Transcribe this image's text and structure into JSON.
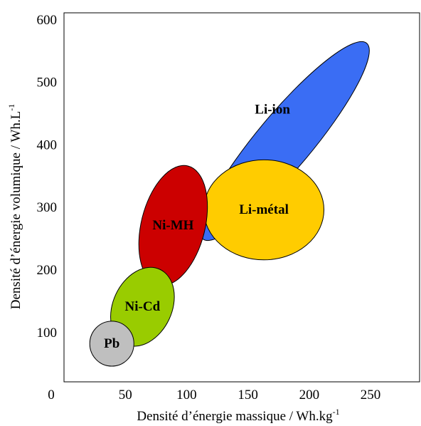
{
  "chart_data": {
    "type": "scatter",
    "title": "",
    "xlabel": "Densité d’énergie massique / Wh.kg",
    "xlabel_sup": "-1",
    "ylabel": "Densité d’énergie volumique / Wh.L",
    "ylabel_sup": "-1",
    "xlim": [
      0,
      290
    ],
    "ylim": [
      20,
      610
    ],
    "x_ticks": [
      0,
      50,
      100,
      150,
      200,
      250
    ],
    "y_ticks": [
      100,
      200,
      300,
      400,
      500,
      600
    ],
    "grid": false,
    "legend": "none",
    "regions": [
      {
        "name": "Li-ion",
        "cx": 180,
        "cy": 405,
        "rx": 104,
        "ry": 44,
        "rotate_deg": -50,
        "color": "#3a6df4"
      },
      {
        "name": "Li-métal",
        "cx": 163,
        "cy": 295,
        "rx": 49,
        "ry": 80,
        "rotate_deg": 0,
        "color": "#ffcc00"
      },
      {
        "name": "Ni-MH",
        "cx": 89,
        "cy": 270,
        "rx": 26,
        "ry": 98,
        "rotate_deg": 14,
        "color": "#cc0000"
      },
      {
        "name": "Ni-Cd",
        "cx": 64,
        "cy": 140,
        "rx": 24,
        "ry": 66,
        "rotate_deg": 25,
        "color": "#99cc00"
      },
      {
        "name": "Pb",
        "cx": 39,
        "cy": 81,
        "rx": 18,
        "ry": 36,
        "rotate_deg": 0,
        "color": "#bfbfbf"
      }
    ]
  }
}
